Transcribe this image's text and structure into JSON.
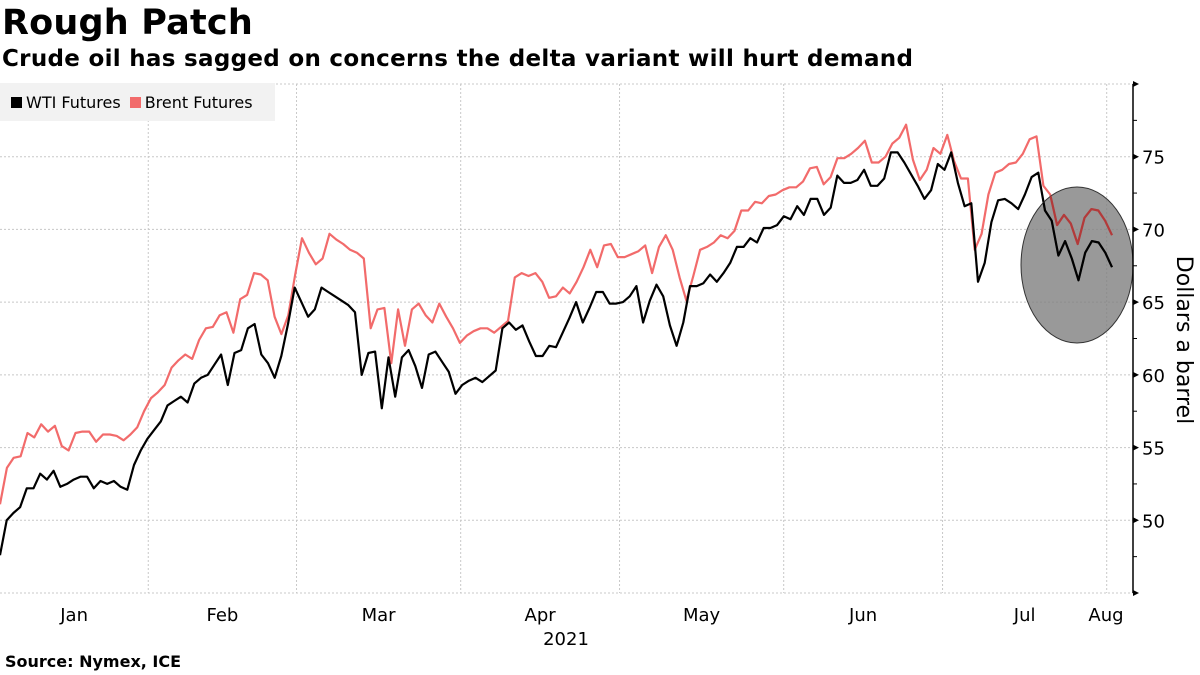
{
  "header": {
    "title": "Rough Patch",
    "subtitle": "Crude oil has sagged on concerns the delta variant will hurt demand"
  },
  "footer": {
    "source": "Source: Nymex, ICE"
  },
  "colors": {
    "wti": "#000000",
    "brent": "#f26b6b",
    "highlight_fill": "#808080",
    "legend_bg": "#f2f2f2",
    "grid": "#c8c8c8"
  },
  "chart_data": {
    "type": "line",
    "title": "Rough Patch",
    "subtitle": "Crude oil has sagged on concerns the delta variant will hurt demand",
    "xlabel": "2021",
    "ylabel": "Dollars a barrel",
    "x_tick_labels": [
      "Jan",
      "Feb",
      "Mar",
      "Apr",
      "May",
      "Jun",
      "Jul",
      "Aug"
    ],
    "x_range": [
      "2021-01-04",
      "2021-08-02"
    ],
    "y_ticks": [
      50,
      55,
      60,
      65,
      70,
      75
    ],
    "ylim": [
      45,
      80
    ],
    "grid": true,
    "legend_position": "top-left",
    "y_axis_side": "right",
    "annotation": "gray ellipse highlighting late-July decline",
    "series": [
      {
        "name": "WTI Futures",
        "values": [
          47.6,
          50.0,
          50.5,
          50.9,
          52.2,
          52.2,
          53.2,
          52.8,
          53.4,
          52.3,
          52.5,
          52.8,
          53.0,
          53.0,
          52.2,
          52.7,
          52.5,
          52.7,
          52.3,
          52.1,
          53.8,
          54.8,
          55.6,
          56.2,
          56.8,
          57.9,
          58.2,
          58.5,
          58.1,
          59.4,
          59.8,
          60.0,
          60.7,
          61.4,
          59.3,
          61.5,
          61.7,
          63.2,
          63.5,
          61.4,
          60.8,
          59.8,
          61.3,
          63.5,
          66.0,
          65.0,
          64.0,
          64.5,
          66.0,
          65.7,
          65.4,
          65.1,
          64.8,
          64.3,
          60.0,
          61.5,
          61.6,
          57.7,
          61.2,
          58.5,
          61.2,
          61.7,
          60.6,
          59.1,
          61.4,
          61.6,
          60.9,
          60.2,
          58.7,
          59.3,
          59.6,
          59.8,
          59.5,
          59.9,
          60.3,
          63.2,
          63.6,
          63.1,
          63.4,
          62.3,
          61.3,
          61.3,
          62.0,
          61.9,
          62.9,
          63.9,
          65.0,
          63.6,
          64.6,
          65.7,
          65.7,
          64.9,
          64.9,
          65.0,
          65.4,
          66.1,
          63.6,
          65.1,
          66.2,
          65.4,
          63.4,
          62.0,
          63.6,
          66.1,
          66.1,
          66.3,
          66.9,
          66.4,
          67.0,
          67.7,
          68.8,
          68.8,
          69.4,
          69.1,
          70.1,
          70.1,
          70.3,
          70.9,
          70.7,
          71.6,
          71.0,
          72.1,
          72.1,
          71.0,
          71.5,
          73.7,
          73.2,
          73.2,
          73.4,
          74.1,
          73.0,
          73.0,
          73.5,
          75.3,
          75.3,
          74.6,
          73.8,
          73.0,
          72.1,
          72.7,
          74.5,
          74.1,
          75.3,
          73.2,
          71.6,
          71.8,
          66.4,
          67.7,
          70.5,
          72.0,
          72.1,
          71.8,
          71.4,
          72.4,
          73.6,
          73.9,
          71.3,
          70.6,
          68.2,
          69.2,
          68.0,
          66.5,
          68.4,
          69.2,
          69.1,
          68.4,
          67.4
        ]
      },
      {
        "name": "Brent Futures",
        "values": [
          51.1,
          53.6,
          54.3,
          54.4,
          56.0,
          55.7,
          56.6,
          56.1,
          56.5,
          55.1,
          54.8,
          56.0,
          56.1,
          56.1,
          55.4,
          55.9,
          55.9,
          55.8,
          55.5,
          55.9,
          56.4,
          57.5,
          58.4,
          58.8,
          59.3,
          60.5,
          61.0,
          61.4,
          61.1,
          62.4,
          63.2,
          63.3,
          64.1,
          64.3,
          62.9,
          65.2,
          65.5,
          67.0,
          66.9,
          66.5,
          64.0,
          62.8,
          64.1,
          66.9,
          69.4,
          68.4,
          67.6,
          68.0,
          69.7,
          69.3,
          69.0,
          68.6,
          68.4,
          68.0,
          63.2,
          64.5,
          64.6,
          60.8,
          64.5,
          62.0,
          64.5,
          64.9,
          64.1,
          63.6,
          64.9,
          64.0,
          63.2,
          62.2,
          62.7,
          63.0,
          63.2,
          63.2,
          62.9,
          63.3,
          63.7,
          66.7,
          67.0,
          66.8,
          67.0,
          66.4,
          65.3,
          65.4,
          66.0,
          65.6,
          66.4,
          67.4,
          68.6,
          67.4,
          68.9,
          69.0,
          68.1,
          68.1,
          68.3,
          68.5,
          68.9,
          67.0,
          68.8,
          69.6,
          68.6,
          66.7,
          65.1,
          66.8,
          68.6,
          68.8,
          69.1,
          69.6,
          69.4,
          69.9,
          71.3,
          71.3,
          71.9,
          71.8,
          72.3,
          72.4,
          72.7,
          72.9,
          72.9,
          73.3,
          74.2,
          74.3,
          73.1,
          73.6,
          74.9,
          74.9,
          75.2,
          75.6,
          76.1,
          74.6,
          74.6,
          75.0,
          75.9,
          76.3,
          77.2,
          74.8,
          73.4,
          74.1,
          75.6,
          75.2,
          76.5,
          74.7,
          73.5,
          73.5,
          68.6,
          69.7,
          72.4,
          73.9,
          74.1,
          74.5,
          74.6,
          75.2,
          76.2,
          76.4,
          73.0,
          72.4,
          70.3,
          71.0,
          70.4,
          69.0,
          70.8,
          71.4,
          71.3,
          70.6,
          69.6
        ]
      }
    ]
  }
}
